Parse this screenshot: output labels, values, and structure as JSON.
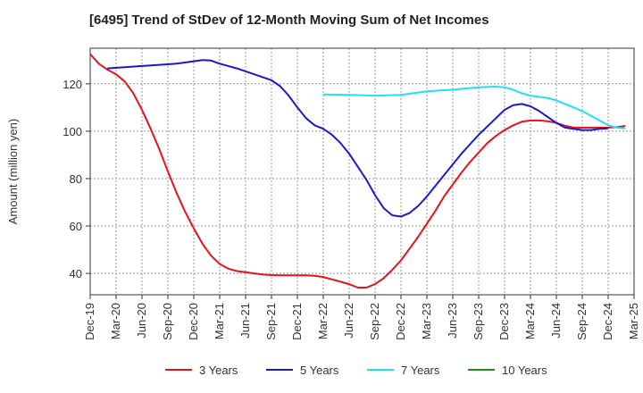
{
  "chart_data": {
    "type": "line",
    "title": "[6495]  Trend of StDev of 12-Month Moving Sum of Net Incomes",
    "ylabel": "Amount (million yen)",
    "xlabel": "",
    "ylim": [
      31,
      135
    ],
    "yticks": [
      40,
      60,
      80,
      100,
      120
    ],
    "x_ticks": [
      "Dec-19",
      "Mar-20",
      "Jun-20",
      "Sep-20",
      "Dec-20",
      "Mar-21",
      "Jun-21",
      "Sep-21",
      "Dec-21",
      "Mar-22",
      "Jun-22",
      "Sep-22",
      "Dec-22",
      "Mar-23",
      "Jun-23",
      "Sep-23",
      "Dec-23",
      "Mar-24",
      "Jun-24",
      "Sep-24",
      "Dec-24",
      "Mar-25"
    ],
    "grid": true,
    "legend_position": "bottom",
    "series": [
      {
        "name": "3 Years",
        "color": "#e8121a",
        "points": [
          [
            0,
            132.5
          ],
          [
            1,
            128.5
          ],
          [
            2,
            126
          ],
          [
            3,
            124
          ],
          [
            4,
            121
          ],
          [
            5,
            116
          ],
          [
            6,
            109
          ],
          [
            7,
            101
          ],
          [
            8,
            92.5
          ],
          [
            9,
            83
          ],
          [
            10,
            74
          ],
          [
            11,
            66
          ],
          [
            12,
            59
          ],
          [
            13,
            52.5
          ],
          [
            14,
            47.5
          ],
          [
            15,
            44
          ],
          [
            16,
            42
          ],
          [
            17,
            41
          ],
          [
            18,
            40.5
          ],
          [
            19,
            40
          ],
          [
            20,
            39.5
          ],
          [
            21,
            39.3
          ],
          [
            22,
            39.2
          ],
          [
            23,
            39.2
          ],
          [
            24,
            39.2
          ],
          [
            25,
            39.2
          ],
          [
            26,
            39
          ],
          [
            27,
            38.5
          ],
          [
            28,
            37.5
          ],
          [
            29,
            36.5
          ],
          [
            30,
            35.5
          ],
          [
            31,
            34
          ],
          [
            32,
            34
          ],
          [
            33,
            35.5
          ],
          [
            34,
            38
          ],
          [
            35,
            41.5
          ],
          [
            36,
            45.5
          ],
          [
            37,
            50.5
          ],
          [
            38,
            55.5
          ],
          [
            39,
            61
          ],
          [
            40,
            66.5
          ],
          [
            41,
            72.5
          ],
          [
            42,
            77.5
          ],
          [
            43,
            82.5
          ],
          [
            44,
            87
          ],
          [
            45,
            91
          ],
          [
            46,
            95
          ],
          [
            47,
            98
          ],
          [
            48,
            100.5
          ],
          [
            49,
            102.5
          ],
          [
            50,
            104
          ],
          [
            51,
            104.5
          ],
          [
            52,
            104.5
          ],
          [
            53,
            104.2
          ],
          [
            54,
            103.5
          ],
          [
            55,
            102.3
          ],
          [
            56,
            101.5
          ],
          [
            57,
            101.5
          ],
          [
            58,
            101.5
          ],
          [
            59,
            101.5
          ],
          [
            60,
            101.5
          ],
          [
            61,
            101.7
          ],
          [
            62,
            102.2
          ]
        ]
      },
      {
        "name": "5 Years",
        "color": "#1a1acd",
        "points": [
          [
            2,
            126.5
          ],
          [
            4,
            127
          ],
          [
            6,
            127.5
          ],
          [
            8,
            128
          ],
          [
            10,
            128.5
          ],
          [
            12,
            129.5
          ],
          [
            13,
            130
          ],
          [
            14,
            129.8
          ],
          [
            15,
            128.5
          ],
          [
            17,
            126.5
          ],
          [
            19,
            124
          ],
          [
            21,
            121.5
          ],
          [
            22,
            119
          ],
          [
            23,
            115
          ],
          [
            24,
            110
          ],
          [
            25,
            105.5
          ],
          [
            26,
            102.5
          ],
          [
            27,
            101
          ],
          [
            28,
            98.5
          ],
          [
            29,
            95
          ],
          [
            30,
            90.5
          ],
          [
            31,
            85
          ],
          [
            32,
            79.5
          ],
          [
            33,
            73
          ],
          [
            34,
            67.5
          ],
          [
            35,
            64.5
          ],
          [
            36,
            64
          ],
          [
            37,
            65.5
          ],
          [
            38,
            68.5
          ],
          [
            39,
            72.5
          ],
          [
            40,
            77
          ],
          [
            41,
            81.5
          ],
          [
            42,
            86
          ],
          [
            43,
            90.5
          ],
          [
            44,
            94.5
          ],
          [
            45,
            98.5
          ],
          [
            46,
            102
          ],
          [
            47,
            105.5
          ],
          [
            48,
            109
          ],
          [
            49,
            111
          ],
          [
            50,
            111.5
          ],
          [
            51,
            110.5
          ],
          [
            52,
            108.5
          ],
          [
            53,
            106
          ],
          [
            54,
            103.5
          ],
          [
            55,
            101.5
          ],
          [
            56,
            101
          ],
          [
            57,
            100.5
          ],
          [
            58,
            100.5
          ],
          [
            59,
            101
          ],
          [
            60,
            101.2
          ]
        ]
      },
      {
        "name": "7 Years",
        "color": "#22e0f0",
        "points": [
          [
            27,
            115.5
          ],
          [
            30,
            115.3
          ],
          [
            33,
            115
          ],
          [
            36,
            115.3
          ],
          [
            39,
            116.8
          ],
          [
            42,
            117.5
          ],
          [
            45,
            118.5
          ],
          [
            47,
            118.8
          ],
          [
            48,
            118.5
          ],
          [
            49,
            117.5
          ],
          [
            50,
            116
          ],
          [
            51,
            115
          ],
          [
            52,
            114.5
          ],
          [
            53,
            114
          ],
          [
            54,
            113
          ],
          [
            55,
            111.5
          ],
          [
            56,
            110
          ],
          [
            57,
            108.5
          ],
          [
            58,
            106.5
          ],
          [
            59,
            104.5
          ],
          [
            60,
            102.5
          ],
          [
            61,
            101.5
          ],
          [
            62,
            101.2
          ]
        ]
      },
      {
        "name": "10 Years",
        "color": "#1e8c1e",
        "points": []
      }
    ]
  }
}
